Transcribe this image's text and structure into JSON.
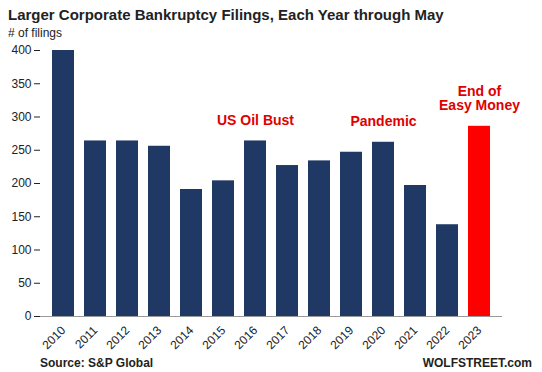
{
  "chart_data": {
    "type": "bar",
    "title": "Larger Corporate Bankruptcy Filings, Each Year through May",
    "y_label": "# of filings",
    "categories": [
      "2010",
      "2011",
      "2012",
      "2013",
      "2014",
      "2015",
      "2016",
      "2017",
      "2018",
      "2019",
      "2020",
      "2021",
      "2022",
      "2023"
    ],
    "values": [
      400,
      264,
      264,
      256,
      191,
      204,
      264,
      227,
      234,
      247,
      262,
      197,
      138,
      286
    ],
    "colors": [
      "#203864",
      "#203864",
      "#203864",
      "#203864",
      "#203864",
      "#203864",
      "#203864",
      "#203864",
      "#203864",
      "#203864",
      "#203864",
      "#203864",
      "#203864",
      "#ff0000"
    ],
    "ylim": [
      0,
      400
    ],
    "yticks": [
      0,
      50,
      100,
      150,
      200,
      250,
      300,
      350,
      400
    ],
    "grid": false,
    "annotations": [
      {
        "text": "US Oil Bust",
        "x": "2016",
        "color": "#e00000"
      },
      {
        "text": "Pandemic",
        "x": "2020",
        "color": "#e00000"
      },
      {
        "text": "End of\nEasy Money",
        "x": "2023",
        "color": "#e00000"
      }
    ],
    "source": "Source: S&P Global",
    "credit": "WOLFSTREET.com"
  }
}
